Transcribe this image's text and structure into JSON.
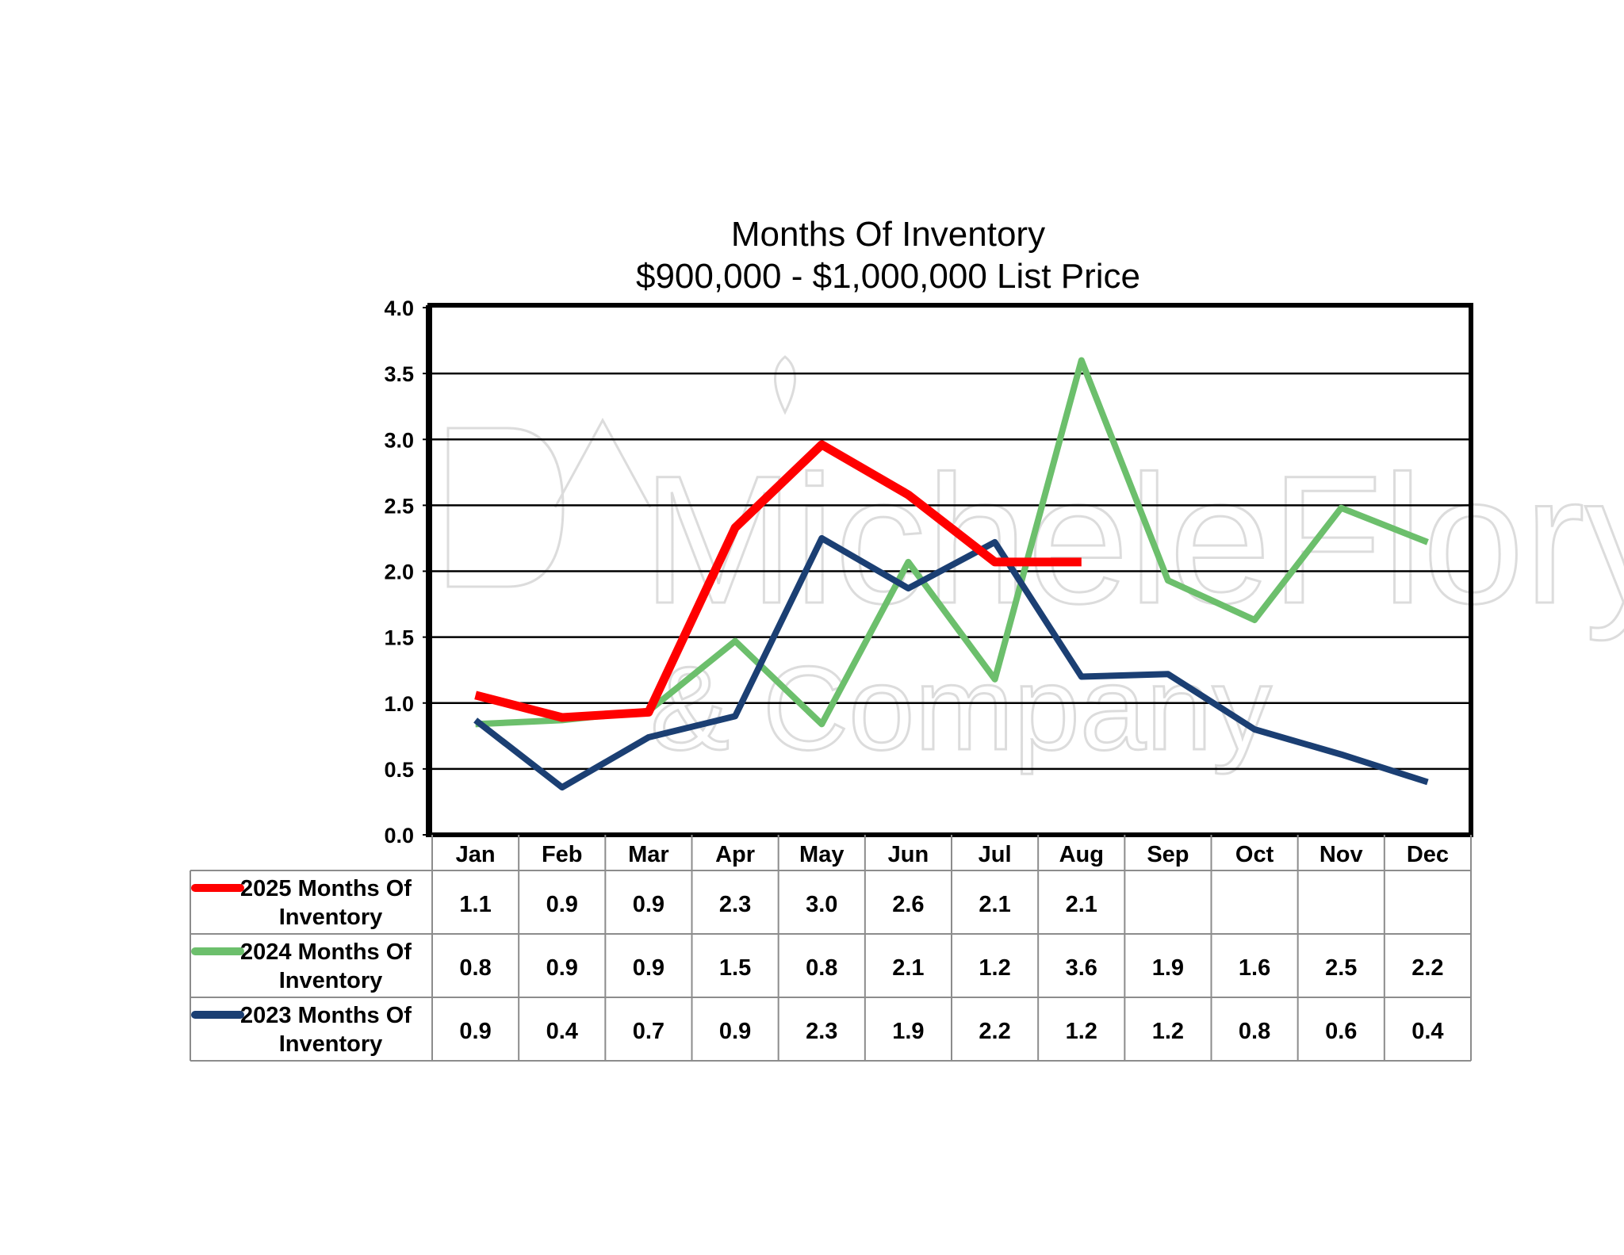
{
  "chart_data": {
    "type": "line",
    "title": "Months Of Inventory",
    "subtitle": "$900,000 - $1,000,000 List Price",
    "categories": [
      "Jan",
      "Feb",
      "Mar",
      "Apr",
      "May",
      "Jun",
      "Jul",
      "Aug",
      "Sep",
      "Oct",
      "Nov",
      "Dec"
    ],
    "ylim": [
      0,
      4.0
    ],
    "yticks": [
      "0.0",
      "0.5",
      "1.0",
      "1.5",
      "2.0",
      "2.5",
      "3.0",
      "3.5",
      "4.0"
    ],
    "grid": true,
    "legend_placement": "table-below",
    "series": [
      {
        "name_line1": "2025 Months Of",
        "name_line2": "Inventory",
        "color": "#ff0000",
        "values": [
          1.06,
          0.89,
          0.93,
          2.33,
          2.96,
          2.58,
          2.07,
          2.07,
          null,
          null,
          null,
          null
        ],
        "labels": [
          "1.1",
          "0.9",
          "0.9",
          "2.3",
          "3.0",
          "2.6",
          "2.1",
          "2.1",
          "",
          "",
          "",
          ""
        ]
      },
      {
        "name_line1": "2024 Months Of",
        "name_line2": "Inventory",
        "color": "#6cbf6c",
        "values": [
          0.84,
          0.87,
          0.94,
          1.47,
          0.84,
          2.07,
          1.18,
          3.6,
          1.93,
          1.63,
          2.48,
          2.22
        ],
        "labels": [
          "0.8",
          "0.9",
          "0.9",
          "1.5",
          "0.8",
          "2.1",
          "1.2",
          "3.6",
          "1.9",
          "1.6",
          "2.5",
          "2.2"
        ]
      },
      {
        "name_line1": "2023 Months Of",
        "name_line2": "Inventory",
        "color": "#1b3f73",
        "values": [
          0.87,
          0.36,
          0.74,
          0.9,
          2.25,
          1.87,
          2.22,
          1.2,
          1.22,
          0.8,
          0.61,
          0.4
        ],
        "labels": [
          "0.9",
          "0.4",
          "0.7",
          "0.9",
          "2.3",
          "1.9",
          "2.2",
          "1.2",
          "1.2",
          "0.8",
          "0.6",
          "0.4"
        ]
      }
    ]
  },
  "watermark": {
    "line1": "MicheleFlory",
    "line2": "& Company"
  }
}
